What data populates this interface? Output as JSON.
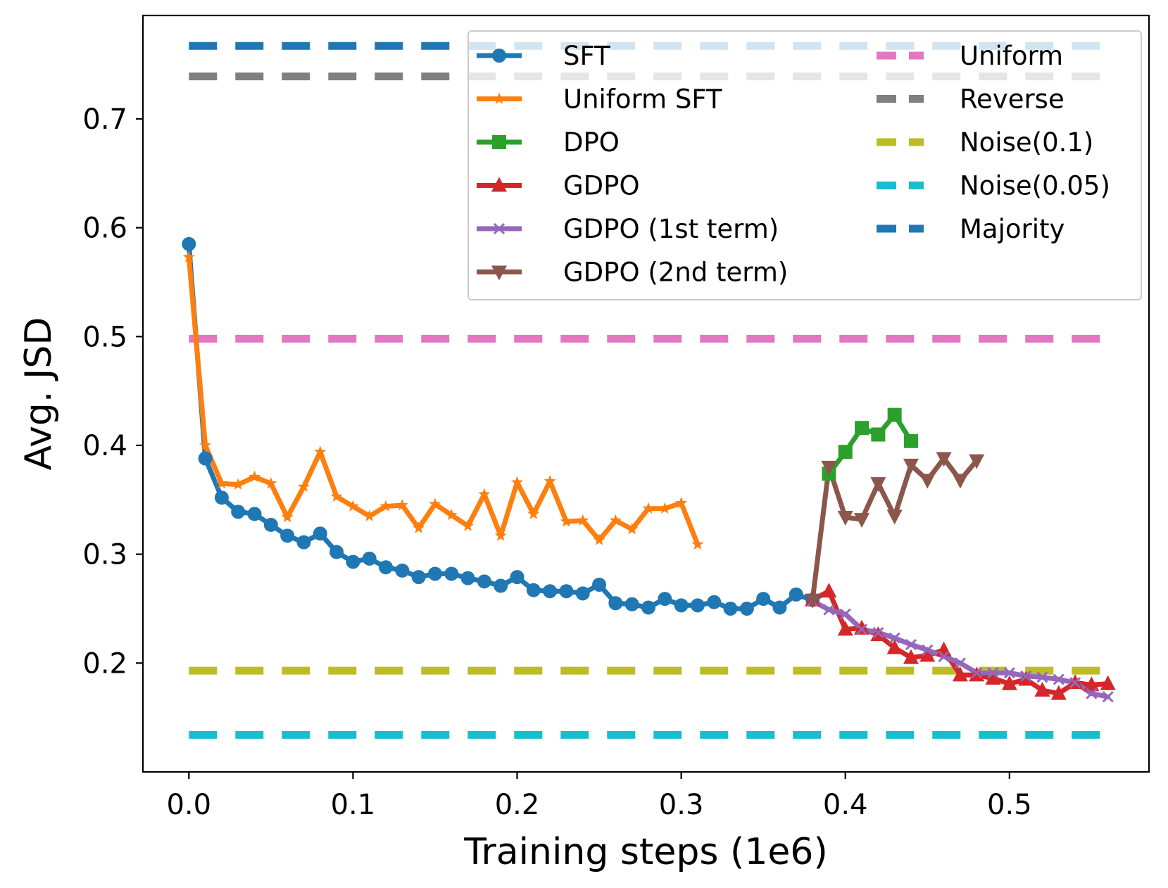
{
  "chart_data": {
    "type": "line",
    "title": "",
    "xlabel": "Training steps (1e6)",
    "ylabel": "Avg. JSD",
    "xlim": [
      -0.028,
      0.585
    ],
    "ylim": [
      0.1,
      0.795
    ],
    "xticks": [
      0.0,
      0.1,
      0.2,
      0.3,
      0.4,
      0.5
    ],
    "xtick_labels": [
      "0.0",
      "0.1",
      "0.2",
      "0.3",
      "0.4",
      "0.5"
    ],
    "yticks": [
      0.2,
      0.3,
      0.4,
      0.5,
      0.6,
      0.7
    ],
    "ytick_labels": [
      "0.2",
      "0.3",
      "0.4",
      "0.5",
      "0.6",
      "0.7"
    ],
    "grid": false,
    "legend_position": "top-right",
    "series": [
      {
        "name": "SFT",
        "color": "#1f77b4",
        "marker": "circle",
        "x": [
          0.0,
          0.01,
          0.02,
          0.03,
          0.04,
          0.05,
          0.06,
          0.07,
          0.08,
          0.09,
          0.1,
          0.11,
          0.12,
          0.13,
          0.14,
          0.15,
          0.16,
          0.17,
          0.18,
          0.19,
          0.2,
          0.21,
          0.22,
          0.23,
          0.24,
          0.25,
          0.26,
          0.27,
          0.28,
          0.29,
          0.3,
          0.31,
          0.32,
          0.33,
          0.34,
          0.35,
          0.36,
          0.37,
          0.38
        ],
        "y": [
          0.585,
          0.388,
          0.352,
          0.339,
          0.337,
          0.327,
          0.317,
          0.311,
          0.319,
          0.302,
          0.293,
          0.296,
          0.288,
          0.285,
          0.279,
          0.282,
          0.282,
          0.278,
          0.275,
          0.271,
          0.279,
          0.267,
          0.266,
          0.266,
          0.264,
          0.272,
          0.255,
          0.254,
          0.251,
          0.259,
          0.253,
          0.253,
          0.256,
          0.25,
          0.25,
          0.259,
          0.251,
          0.263,
          0.258
        ]
      },
      {
        "name": "Uniform SFT",
        "color": "#ff7f0e",
        "marker": "star",
        "x": [
          0.0,
          0.01,
          0.02,
          0.03,
          0.04,
          0.05,
          0.06,
          0.07,
          0.08,
          0.09,
          0.1,
          0.11,
          0.12,
          0.13,
          0.14,
          0.15,
          0.16,
          0.17,
          0.18,
          0.19,
          0.2,
          0.21,
          0.22,
          0.23,
          0.24,
          0.25,
          0.26,
          0.27,
          0.28,
          0.29,
          0.3,
          0.31
        ],
        "y": [
          0.573,
          0.4,
          0.365,
          0.364,
          0.371,
          0.365,
          0.334,
          0.362,
          0.394,
          0.353,
          0.344,
          0.335,
          0.344,
          0.345,
          0.324,
          0.346,
          0.336,
          0.326,
          0.355,
          0.317,
          0.366,
          0.337,
          0.367,
          0.33,
          0.331,
          0.313,
          0.331,
          0.323,
          0.342,
          0.342,
          0.347,
          0.309
        ]
      },
      {
        "name": "DPO",
        "color": "#2ca02c",
        "marker": "square",
        "x": [
          0.39,
          0.4,
          0.41,
          0.42,
          0.43,
          0.44
        ],
        "y": [
          0.374,
          0.394,
          0.416,
          0.41,
          0.428,
          0.404
        ]
      },
      {
        "name": "GDPO",
        "color": "#d62728",
        "marker": "triangle-up",
        "x": [
          0.38,
          0.39,
          0.4,
          0.41,
          0.42,
          0.43,
          0.44,
          0.45,
          0.46,
          0.47,
          0.48,
          0.49,
          0.5,
          0.51,
          0.52,
          0.53,
          0.54,
          0.55,
          0.56
        ],
        "y": [
          0.258,
          0.266,
          0.231,
          0.232,
          0.226,
          0.214,
          0.205,
          0.207,
          0.212,
          0.189,
          0.189,
          0.186,
          0.181,
          0.185,
          0.175,
          0.172,
          0.182,
          0.18,
          0.181
        ]
      },
      {
        "name": "GDPO (1st term)",
        "color": "#9467bd",
        "marker": "x",
        "x": [
          0.38,
          0.39,
          0.4,
          0.41,
          0.42,
          0.43,
          0.44,
          0.45,
          0.46,
          0.47,
          0.48,
          0.49,
          0.5,
          0.51,
          0.52,
          0.53,
          0.54,
          0.55,
          0.56
        ],
        "y": [
          0.257,
          0.249,
          0.245,
          0.231,
          0.228,
          0.223,
          0.217,
          0.212,
          0.206,
          0.2,
          0.191,
          0.191,
          0.191,
          0.188,
          0.187,
          0.185,
          0.182,
          0.172,
          0.169
        ]
      },
      {
        "name": "GDPO (2nd term)",
        "color": "#8c564b",
        "marker": "triangle-down",
        "x": [
          0.38,
          0.39,
          0.4,
          0.41,
          0.42,
          0.43,
          0.44,
          0.45,
          0.46,
          0.47,
          0.48
        ],
        "y": [
          0.258,
          0.38,
          0.334,
          0.332,
          0.365,
          0.335,
          0.382,
          0.368,
          0.388,
          0.368,
          0.386
        ]
      }
    ],
    "reference_lines": [
      {
        "name": "Uniform",
        "color": "#e377c2",
        "y": 0.498
      },
      {
        "name": "Reverse",
        "color": "#7f7f7f",
        "y": 0.739
      },
      {
        "name": "Noise(0.1)",
        "color": "#bcbd22",
        "y": 0.193
      },
      {
        "name": "Noise(0.05)",
        "color": "#17becf",
        "y": 0.134
      },
      {
        "name": "Majority",
        "color": "#1f77b4",
        "y": 0.767
      }
    ],
    "reference_x_range": [
      0.0,
      0.56
    ]
  }
}
